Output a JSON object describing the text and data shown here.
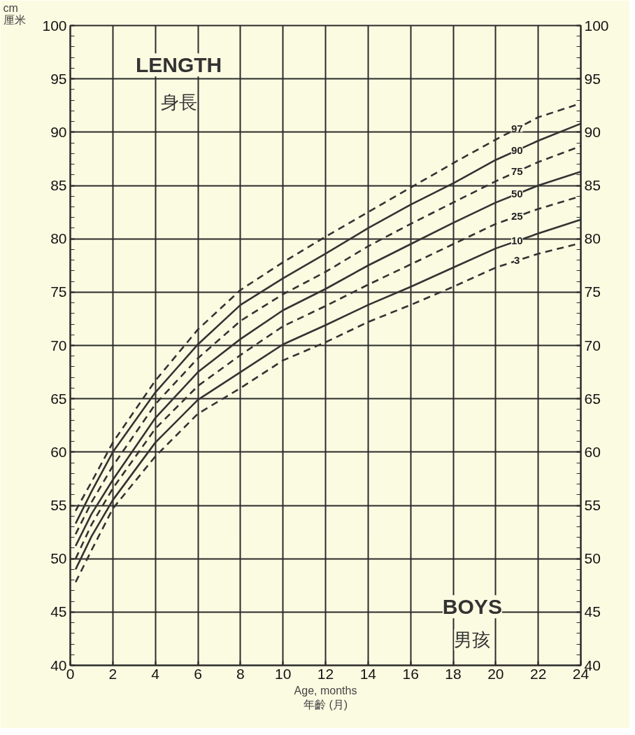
{
  "chart_data": {
    "type": "line",
    "xlabel": "Age, months\n年齡 (月)",
    "ylabel": "cm\n厘米",
    "annotations": [
      "LENGTH",
      "身長",
      "BOYS",
      "男孩"
    ],
    "x": [
      0.25,
      1,
      2,
      4,
      6,
      8,
      10,
      12,
      14,
      16,
      18,
      20,
      22,
      24
    ],
    "series": [
      {
        "name": "97",
        "color": "#333333",
        "line_style": "dashed",
        "values": [
          54.5,
          57.2,
          60.9,
          66.7,
          71.5,
          75.2,
          77.8,
          80.2,
          82.5,
          84.8,
          87.1,
          89.3,
          91.4,
          92.7
        ]
      },
      {
        "name": "90",
        "color": "#333333",
        "line_style": "solid",
        "values": [
          53.3,
          56.3,
          60.0,
          65.6,
          70.1,
          73.8,
          76.3,
          78.6,
          81.0,
          83.2,
          85.2,
          87.4,
          89.2,
          90.8
        ]
      },
      {
        "name": "75",
        "color": "#333333",
        "line_style": "dashed",
        "values": [
          52.3,
          55.3,
          58.7,
          64.5,
          68.8,
          72.3,
          74.8,
          76.9,
          79.3,
          81.4,
          83.4,
          85.4,
          87.2,
          88.7
        ]
      },
      {
        "name": "50",
        "color": "#333333",
        "line_style": "solid",
        "values": [
          51.2,
          54.2,
          57.4,
          63.2,
          67.5,
          70.6,
          73.3,
          75.3,
          77.5,
          79.5,
          81.5,
          83.4,
          85.0,
          86.3
        ]
      },
      {
        "name": "25",
        "color": "#333333",
        "line_style": "dashed",
        "values": [
          50.0,
          53.2,
          56.6,
          62.2,
          66.2,
          69.1,
          71.8,
          73.7,
          75.7,
          77.6,
          79.5,
          81.4,
          82.8,
          84.0
        ]
      },
      {
        "name": "10",
        "color": "#333333",
        "line_style": "solid",
        "values": [
          49.0,
          52.1,
          55.5,
          60.9,
          64.9,
          67.5,
          70.1,
          71.9,
          73.8,
          75.5,
          77.3,
          79.1,
          80.5,
          81.8
        ]
      },
      {
        "name": "3",
        "color": "#333333",
        "line_style": "dashed",
        "values": [
          47.8,
          50.8,
          54.7,
          59.6,
          63.6,
          66.0,
          68.6,
          70.3,
          72.2,
          73.8,
          75.5,
          77.3,
          78.6,
          79.6
        ]
      }
    ],
    "xlim": [
      0,
      24
    ],
    "xticks": [
      0,
      2,
      4,
      6,
      8,
      10,
      12,
      14,
      16,
      18,
      20,
      22,
      24
    ],
    "ylim": [
      40,
      100
    ],
    "yticks": [
      40,
      45,
      50,
      55,
      60,
      65,
      70,
      75,
      80,
      85,
      90,
      95,
      100
    ],
    "y2lim": [
      40,
      100
    ],
    "y2ticks": [
      40,
      45,
      50,
      55,
      60,
      65,
      70,
      75,
      80,
      85,
      90,
      95,
      100
    ],
    "grid": true,
    "marker": "none"
  }
}
